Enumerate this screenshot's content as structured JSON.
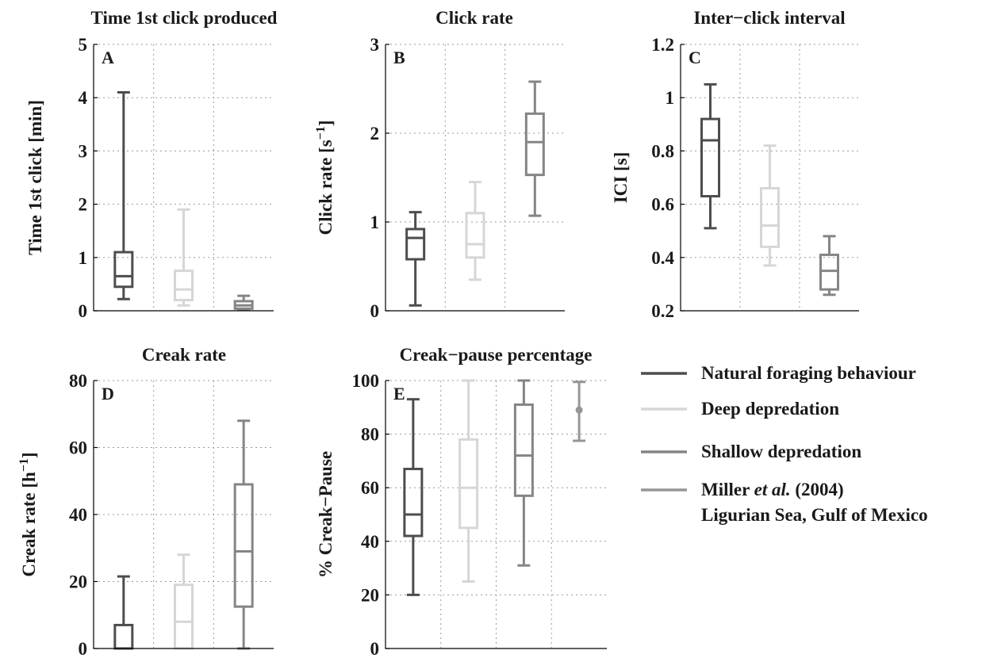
{
  "colors": {
    "natural": "#4d4d4d",
    "deep": "#d6d6d6",
    "shallow": "#858585",
    "miller": "#969696"
  },
  "legend": {
    "items": [
      {
        "label": "Natural foraging behaviour",
        "color_key": "natural"
      },
      {
        "label": "Deep depredation",
        "color_key": "deep"
      },
      {
        "label": "Shallow depredation",
        "color_key": "shallow"
      },
      {
        "label_line1_pre": "Miller ",
        "label_line1_em": "et al.",
        "label_line1_post": " (2004)",
        "label_line2": "Ligurian Sea, Gulf of Mexico",
        "color_key": "miller"
      }
    ]
  },
  "chart_data": [
    {
      "type": "box",
      "letter": "A",
      "title": "Time 1st click produced",
      "ylabel": "Time 1st click [min]",
      "ylim": [
        0,
        5
      ],
      "yticks": [
        0,
        1,
        2,
        3,
        4,
        5
      ],
      "ytick_labels": [
        "0",
        "1",
        "2",
        "3",
        "4",
        "5"
      ],
      "n_slots": 3,
      "grid": true,
      "boxes": [
        {
          "group": "natural",
          "whisker_low": 0.22,
          "q1": 0.45,
          "median": 0.65,
          "q3": 1.1,
          "whisker_high": 4.1
        },
        {
          "group": "deep",
          "whisker_low": 0.1,
          "q1": 0.2,
          "median": 0.4,
          "q3": 0.75,
          "whisker_high": 1.9
        },
        {
          "group": "shallow",
          "whisker_low": 0.02,
          "q1": 0.04,
          "median": 0.1,
          "q3": 0.18,
          "whisker_high": 0.28
        }
      ]
    },
    {
      "type": "box",
      "letter": "B",
      "title": "Click rate",
      "ylabel": "Click rate [s",
      "ylabel_sup": "−1",
      "ylabel_post": "]",
      "ylim": [
        0,
        3
      ],
      "yticks": [
        0,
        1,
        2,
        3
      ],
      "ytick_labels": [
        "0",
        "1",
        "2",
        "3"
      ],
      "n_slots": 3,
      "grid": true,
      "boxes": [
        {
          "group": "natural",
          "whisker_low": 0.06,
          "q1": 0.58,
          "median": 0.82,
          "q3": 0.92,
          "whisker_high": 1.11
        },
        {
          "group": "deep",
          "whisker_low": 0.35,
          "q1": 0.6,
          "median": 0.75,
          "q3": 1.1,
          "whisker_high": 1.45
        },
        {
          "group": "shallow",
          "whisker_low": 1.07,
          "q1": 1.53,
          "median": 1.9,
          "q3": 2.22,
          "whisker_high": 2.58
        }
      ]
    },
    {
      "type": "box",
      "letter": "C",
      "title": "Inter−click interval",
      "ylabel": "ICI [s]",
      "ylim": [
        0.2,
        1.2
      ],
      "yticks": [
        0.2,
        0.4,
        0.6,
        0.8,
        1.0,
        1.2
      ],
      "ytick_labels": [
        "0.2",
        "0.4",
        "0.6",
        "0.8",
        "1",
        "1.2"
      ],
      "n_slots": 3,
      "grid": true,
      "boxes": [
        {
          "group": "natural",
          "whisker_low": 0.51,
          "q1": 0.63,
          "median": 0.84,
          "q3": 0.92,
          "whisker_high": 1.05
        },
        {
          "group": "deep",
          "whisker_low": 0.37,
          "q1": 0.44,
          "median": 0.52,
          "q3": 0.66,
          "whisker_high": 0.82
        },
        {
          "group": "shallow",
          "whisker_low": 0.26,
          "q1": 0.28,
          "median": 0.35,
          "q3": 0.41,
          "whisker_high": 0.48
        }
      ]
    },
    {
      "type": "box",
      "letter": "D",
      "title": "Creak rate",
      "ylabel": "Creak rate [h",
      "ylabel_sup": "−1",
      "ylabel_post": "]",
      "ylim": [
        0,
        80
      ],
      "yticks": [
        0,
        20,
        40,
        60,
        80
      ],
      "ytick_labels": [
        "0",
        "20",
        "40",
        "60",
        "80"
      ],
      "n_slots": 3,
      "grid": true,
      "boxes": [
        {
          "group": "natural",
          "whisker_low": 0,
          "q1": 0,
          "median": 0,
          "q3": 7,
          "whisker_high": 21.5
        },
        {
          "group": "deep",
          "whisker_low": 0,
          "q1": 0,
          "median": 8,
          "q3": 19,
          "whisker_high": 28
        },
        {
          "group": "shallow",
          "whisker_low": 0,
          "q1": 12.5,
          "median": 29,
          "q3": 49,
          "whisker_high": 68
        }
      ]
    },
    {
      "type": "box",
      "letter": "E",
      "title": "Creak−pause percentage",
      "ylabel": "% Creak−Pause",
      "ylim": [
        0,
        100
      ],
      "yticks": [
        0,
        20,
        40,
        60,
        80,
        100
      ],
      "ytick_labels": [
        "0",
        "20",
        "40",
        "60",
        "80",
        "100"
      ],
      "n_slots": 4,
      "grid": true,
      "boxes": [
        {
          "group": "natural",
          "whisker_low": 20,
          "q1": 42,
          "median": 50,
          "q3": 67,
          "whisker_high": 93
        },
        {
          "group": "deep",
          "whisker_low": 25,
          "q1": 45,
          "median": 60,
          "q3": 78,
          "whisker_high": 100
        },
        {
          "group": "shallow",
          "whisker_low": 31,
          "q1": 57,
          "median": 72,
          "q3": 91,
          "whisker_high": 100
        }
      ],
      "points": [
        {
          "group": "miller",
          "slot": 3,
          "value": 89,
          "whisker_low": 77.5,
          "whisker_high": 99.5
        }
      ]
    }
  ]
}
